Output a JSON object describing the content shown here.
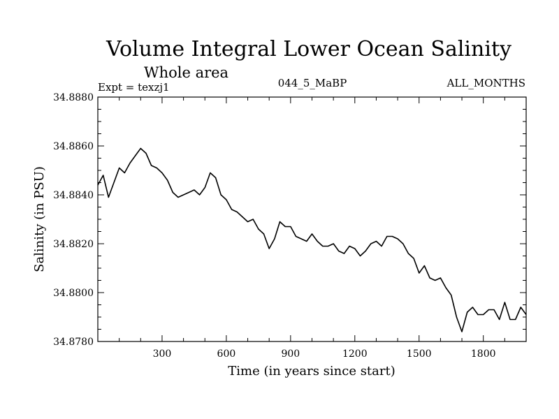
{
  "chart_data": {
    "type": "line",
    "title": "Volume Integral Lower Ocean Salinity",
    "subtitle": "Whole area",
    "header_left": "Expt = texzj1",
    "header_center": "044_5_MaBP",
    "header_right": "ALL_MONTHS",
    "xlabel": "Time (in years since start)",
    "ylabel": "Salinity (in PSU)",
    "xlim": [
      0,
      2000
    ],
    "ylim": [
      34.878,
      34.888
    ],
    "xticks": [
      300,
      600,
      900,
      1200,
      1500,
      1800
    ],
    "xtick_labels": [
      "300",
      "600",
      "900",
      "1200",
      "1500",
      "1800"
    ],
    "yticks": [
      34.878,
      34.88,
      34.882,
      34.884,
      34.886,
      34.888
    ],
    "ytick_labels": [
      "34.8780",
      "34.8800",
      "34.8820",
      "34.8840",
      "34.8860",
      "34.8880"
    ],
    "grid": false,
    "series": [
      {
        "name": "Salinity",
        "x": [
          0,
          25,
          50,
          75,
          100,
          125,
          150,
          175,
          200,
          225,
          250,
          275,
          300,
          325,
          350,
          375,
          400,
          425,
          450,
          475,
          500,
          525,
          550,
          575,
          600,
          625,
          650,
          675,
          700,
          725,
          750,
          775,
          800,
          825,
          850,
          875,
          900,
          925,
          950,
          975,
          1000,
          1025,
          1050,
          1075,
          1100,
          1125,
          1150,
          1175,
          1200,
          1225,
          1250,
          1275,
          1300,
          1325,
          1350,
          1375,
          1400,
          1425,
          1450,
          1475,
          1500,
          1525,
          1550,
          1575,
          1600,
          1625,
          1650,
          1675,
          1700,
          1725,
          1750,
          1775,
          1800,
          1825,
          1850,
          1875,
          1900,
          1925,
          1950,
          1975,
          2000
        ],
        "values": [
          34.8844,
          34.8848,
          34.8839,
          34.8845,
          34.8851,
          34.8849,
          34.8853,
          34.8856,
          34.8859,
          34.8857,
          34.8852,
          34.8851,
          34.8849,
          34.8846,
          34.8841,
          34.8839,
          34.884,
          34.8841,
          34.8842,
          34.884,
          34.8843,
          34.8849,
          34.8847,
          34.884,
          34.8838,
          34.8834,
          34.8833,
          34.8831,
          34.8829,
          34.883,
          34.8826,
          34.8824,
          34.8818,
          34.8822,
          34.8829,
          34.8827,
          34.8827,
          34.8823,
          34.8822,
          34.8821,
          34.8824,
          34.8821,
          34.8819,
          34.8819,
          34.882,
          34.8817,
          34.8816,
          34.8819,
          34.8818,
          34.8815,
          34.8817,
          34.882,
          34.8821,
          34.8819,
          34.8823,
          34.8823,
          34.8822,
          34.882,
          34.8816,
          34.8814,
          34.8808,
          34.8811,
          34.8806,
          34.8805,
          34.8806,
          34.8802,
          34.8799,
          34.879,
          34.8784,
          34.8792,
          34.8794,
          34.8791,
          34.8791,
          34.8793,
          34.8793,
          34.8789,
          34.8796,
          34.8789,
          34.8789,
          34.8794,
          34.8791
        ]
      }
    ]
  }
}
